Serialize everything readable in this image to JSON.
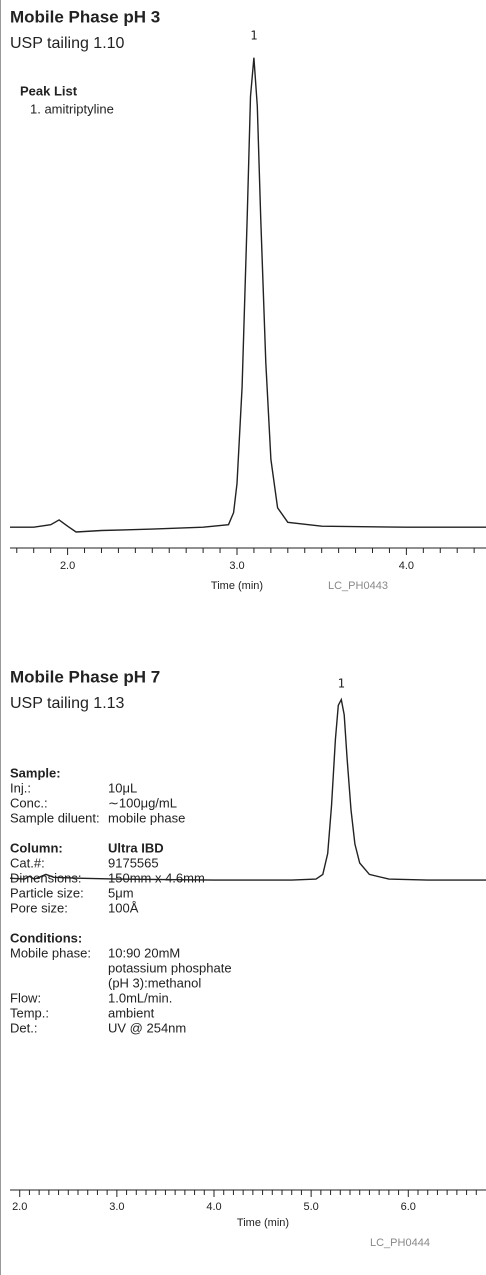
{
  "chart_data": [
    {
      "type": "line",
      "title": "Mobile Phase pH 3",
      "subtitle": "USP tailing 1.10",
      "peak_list_title": "Peak List",
      "peak_list": [
        "1. amitriptyline"
      ],
      "annotations": [
        {
          "text": "1",
          "x": 3.1
        }
      ],
      "xlabel": "Time (min)",
      "code": "LC_PH0443",
      "xlim": [
        1.66,
        4.47
      ],
      "ylim": [
        0,
        100
      ],
      "xticks": [
        {
          "value": 2,
          "label": "2.0"
        },
        {
          "value": 3,
          "label": "3.0"
        },
        {
          "value": 4,
          "label": "4.0"
        }
      ],
      "xminorticks": [
        1.7,
        1.8,
        1.9,
        2.1,
        2.2,
        2.3,
        2.4,
        2.5,
        2.6,
        2.7,
        2.8,
        2.9,
        3.1,
        3.2,
        3.3,
        3.4,
        3.5,
        3.6,
        3.7,
        3.8,
        3.9,
        4.1,
        4.2,
        4.3,
        4.4
      ],
      "x": [
        1.66,
        1.8,
        1.9,
        1.95,
        2.0,
        2.05,
        2.2,
        2.5,
        2.8,
        2.95,
        2.98,
        3.0,
        3.03,
        3.06,
        3.08,
        3.1,
        3.12,
        3.14,
        3.17,
        3.2,
        3.24,
        3.3,
        3.5,
        4.0,
        4.47
      ],
      "series": [
        {
          "color": "#222222",
          "values": [
            1,
            1,
            1.5,
            2.5,
            1.2,
            0,
            0.3,
            0.6,
            1,
            1.5,
            4,
            10,
            30,
            65,
            90,
            98,
            88,
            65,
            35,
            15,
            5,
            2,
            1.2,
            1,
            1
          ]
        }
      ]
    },
    {
      "type": "line",
      "title": "Mobile Phase pH 7",
      "subtitle": "USP tailing 1.13",
      "annotations": [
        {
          "text": "1",
          "x": 5.31
        }
      ],
      "notes": [
        {
          "title": "Sample:",
          "rows": [
            [
              "Inj.:",
              "10μL"
            ],
            [
              "Conc.:",
              "∼100μg/mL"
            ],
            [
              "Sample diluent:",
              "mobile phase"
            ]
          ]
        },
        {
          "title": "Column:",
          "title_value": "Ultra IBD",
          "rows": [
            [
              "Cat.#:",
              "9175565"
            ],
            [
              "Dimensions:",
              "150mm x 4.6mm"
            ],
            [
              "Particle size:",
              "5μm"
            ],
            [
              "Pore size:",
              "100Å"
            ]
          ]
        },
        {
          "title": "Conditions:",
          "rows": [
            [
              "Mobile phase:",
              "10:90 20mM"
            ],
            [
              null,
              "potassium phosphate"
            ],
            [
              null,
              "(pH 3):methanol"
            ],
            [
              "Flow:",
              "1.0mL/min."
            ],
            [
              "Temp.:",
              "ambient"
            ],
            [
              "Det.:",
              "UV @ 254nm"
            ]
          ]
        }
      ],
      "xlabel": "Time (min)",
      "code": "LC_PH0444",
      "xlim": [
        1.9,
        6.8
      ],
      "ylim": [
        0,
        100
      ],
      "xticks": [
        {
          "value": 2,
          "label": "2.0"
        },
        {
          "value": 3,
          "label": "3.0"
        },
        {
          "value": 4,
          "label": "4.0"
        },
        {
          "value": 5,
          "label": "5.0"
        },
        {
          "value": 6,
          "label": "6.0"
        }
      ],
      "xminorticks": [
        2.1,
        2.2,
        2.3,
        2.4,
        2.5,
        2.6,
        2.7,
        2.8,
        2.9,
        3.1,
        3.2,
        3.3,
        3.4,
        3.5,
        3.6,
        3.7,
        3.8,
        3.9,
        4.1,
        4.2,
        4.3,
        4.4,
        4.5,
        4.6,
        4.7,
        4.8,
        4.9,
        5.1,
        5.2,
        5.3,
        5.4,
        5.5,
        5.6,
        5.7,
        5.8,
        5.9,
        6.1,
        6.2,
        6.3,
        6.4,
        6.5,
        6.6,
        6.7
      ],
      "x": [
        1.9,
        2.05,
        2.1,
        2.15,
        2.2,
        2.27,
        2.35,
        2.6,
        3.0,
        4.0,
        4.8,
        5.05,
        5.12,
        5.17,
        5.21,
        5.25,
        5.28,
        5.31,
        5.34,
        5.37,
        5.41,
        5.45,
        5.5,
        5.6,
        5.8,
        6.2,
        6.8
      ],
      "series": [
        {
          "color": "#222222",
          "values": [
            2,
            1.5,
            3,
            1.5,
            2.5,
            4,
            2.5,
            2,
            1.5,
            1,
            1,
            1.5,
            4,
            15,
            40,
            75,
            93,
            96,
            88,
            65,
            38,
            20,
            10,
            4,
            1.5,
            1,
            1
          ]
        }
      ]
    }
  ]
}
